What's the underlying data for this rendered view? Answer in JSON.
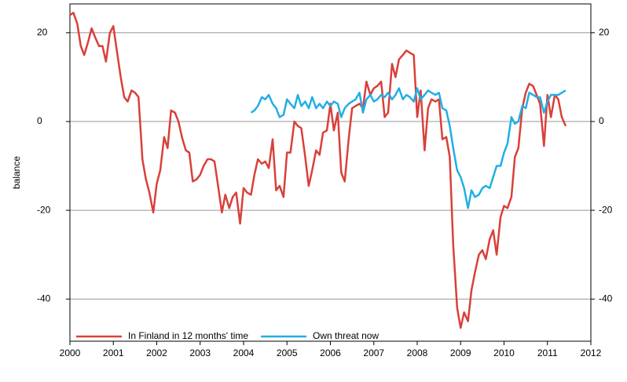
{
  "chart_data": {
    "type": "line",
    "y_label": "balance",
    "xlim": [
      2000,
      2012
    ],
    "xticks": [
      2000,
      2001,
      2002,
      2003,
      2004,
      2005,
      2006,
      2007,
      2008,
      2009,
      2010,
      2011,
      2012
    ],
    "ylim": [
      -49.5,
      26.5
    ],
    "yticks": [
      -40,
      -20,
      0,
      20
    ],
    "y2lim": [
      -49.5,
      26.5
    ],
    "y2ticks": [
      -40,
      -20,
      0,
      20
    ],
    "grid": true,
    "legend": "lower left",
    "series": [
      {
        "name": "In Finland in 12 months' time",
        "color": "#d9403a",
        "x": [
          2000.0,
          2000.08,
          2000.17,
          2000.25,
          2000.33,
          2000.42,
          2000.5,
          2000.58,
          2000.67,
          2000.75,
          2000.83,
          2000.92,
          2001.0,
          2001.08,
          2001.17,
          2001.25,
          2001.33,
          2001.42,
          2001.5,
          2001.58,
          2001.67,
          2001.75,
          2001.83,
          2001.92,
          2002.0,
          2002.08,
          2002.17,
          2002.25,
          2002.33,
          2002.42,
          2002.5,
          2002.58,
          2002.67,
          2002.75,
          2002.83,
          2002.92,
          2003.0,
          2003.08,
          2003.17,
          2003.25,
          2003.33,
          2003.42,
          2003.5,
          2003.58,
          2003.67,
          2003.75,
          2003.83,
          2003.92,
          2004.0,
          2004.08,
          2004.17,
          2004.25,
          2004.33,
          2004.42,
          2004.5,
          2004.58,
          2004.67,
          2004.75,
          2004.83,
          2004.92,
          2005.0,
          2005.08,
          2005.17,
          2005.25,
          2005.33,
          2005.42,
          2005.5,
          2005.58,
          2005.67,
          2005.75,
          2005.83,
          2005.92,
          2006.0,
          2006.08,
          2006.17,
          2006.25,
          2006.33,
          2006.42,
          2006.5,
          2006.58,
          2006.67,
          2006.75,
          2006.83,
          2006.92,
          2007.0,
          2007.08,
          2007.17,
          2007.25,
          2007.33,
          2007.42,
          2007.5,
          2007.58,
          2007.67,
          2007.75,
          2007.83,
          2007.92,
          2008.0,
          2008.08,
          2008.17,
          2008.25,
          2008.33,
          2008.42,
          2008.5,
          2008.58,
          2008.67,
          2008.75,
          2008.83,
          2008.92,
          2009.0,
          2009.08,
          2009.17,
          2009.25,
          2009.33,
          2009.42,
          2009.5,
          2009.58,
          2009.67,
          2009.75,
          2009.83,
          2009.92,
          2010.0,
          2010.08,
          2010.17,
          2010.25,
          2010.33,
          2010.42,
          2010.5,
          2010.58,
          2010.67,
          2010.75,
          2010.83,
          2010.92,
          2011.0,
          2011.08,
          2011.17,
          2011.25,
          2011.33,
          2011.42
        ],
        "values": [
          24,
          24.5,
          22,
          17,
          15,
          18,
          21,
          19,
          17,
          17,
          13.5,
          20,
          21.5,
          16,
          10,
          5.5,
          4.5,
          7,
          6.5,
          5.5,
          -8.5,
          -13,
          -16,
          -20.5,
          -14,
          -11,
          -3.5,
          -6,
          2.5,
          2,
          0,
          -3.5,
          -6.5,
          -7,
          -13.5,
          -13,
          -12,
          -10,
          -8.5,
          -8.5,
          -9,
          -15,
          -20.5,
          -16.5,
          -19.5,
          -17,
          -16,
          -23,
          -15,
          -16,
          -16.5,
          -12,
          -8.5,
          -9.5,
          -9,
          -10.5,
          -4,
          -15.5,
          -14.5,
          -17,
          -7,
          -7,
          0,
          -1,
          -1.5,
          -8,
          -14.5,
          -11,
          -6.5,
          -7.5,
          -2.5,
          -2,
          4,
          -2,
          2,
          -11.5,
          -13.5,
          -4,
          3,
          3.5,
          4,
          3,
          9,
          6,
          7.5,
          8,
          9,
          1,
          2,
          13,
          10,
          14,
          15,
          16,
          15.5,
          15,
          1,
          7,
          -6.5,
          3,
          5,
          4.5,
          5,
          -4,
          -3.5,
          -8,
          -28,
          -42,
          -46.5,
          -43,
          -45,
          -38,
          -34,
          -30,
          -29,
          -31,
          -26.5,
          -24.5,
          -30,
          -21.5,
          -19,
          -19.5,
          -17,
          -8,
          -6,
          3,
          6.5,
          8.5,
          8,
          6,
          4,
          -5.5,
          6,
          1,
          6,
          5,
          1,
          -1
        ]
      },
      {
        "name": "Own threat now",
        "color": "#22aee6",
        "x": [
          2004.17,
          2004.25,
          2004.33,
          2004.42,
          2004.5,
          2004.58,
          2004.67,
          2004.75,
          2004.83,
          2004.92,
          2005.0,
          2005.08,
          2005.17,
          2005.25,
          2005.33,
          2005.42,
          2005.5,
          2005.58,
          2005.67,
          2005.75,
          2005.83,
          2005.92,
          2006.0,
          2006.08,
          2006.17,
          2006.25,
          2006.33,
          2006.42,
          2006.5,
          2006.58,
          2006.67,
          2006.75,
          2006.83,
          2006.92,
          2007.0,
          2007.08,
          2007.17,
          2007.25,
          2007.33,
          2007.42,
          2007.5,
          2007.58,
          2007.67,
          2007.75,
          2007.83,
          2007.92,
          2008.0,
          2008.08,
          2008.17,
          2008.25,
          2008.33,
          2008.42,
          2008.5,
          2008.58,
          2008.67,
          2008.75,
          2008.83,
          2008.92,
          2009.0,
          2009.08,
          2009.17,
          2009.25,
          2009.33,
          2009.42,
          2009.5,
          2009.58,
          2009.67,
          2009.75,
          2009.83,
          2009.92,
          2010.0,
          2010.08,
          2010.17,
          2010.25,
          2010.33,
          2010.42,
          2010.5,
          2010.58,
          2010.67,
          2010.75,
          2010.83,
          2010.92,
          2011.0,
          2011.08,
          2011.17,
          2011.25,
          2011.33,
          2011.42
        ],
        "values": [
          2,
          2.5,
          3.5,
          5.5,
          5,
          6,
          4,
          3,
          1,
          1.5,
          5,
          4,
          3,
          6,
          3.5,
          4.5,
          3,
          5.5,
          3,
          4,
          3,
          4.5,
          3.5,
          4.5,
          4,
          1,
          3,
          4,
          4.5,
          5,
          6.5,
          2,
          5,
          6,
          4.5,
          5,
          6,
          5.5,
          6.5,
          5,
          6,
          7.5,
          5,
          6,
          5.5,
          4.5,
          7.5,
          5,
          6,
          7,
          6.5,
          6,
          6.5,
          3,
          2.5,
          -1,
          -6,
          -11,
          -12.5,
          -15,
          -19.5,
          -15.5,
          -17,
          -16.5,
          -15,
          -14.5,
          -15,
          -12.5,
          -10,
          -10,
          -7,
          -5,
          1,
          -0.5,
          0,
          3.5,
          3,
          6.5,
          6,
          5.5,
          5.5,
          2,
          4.5,
          6,
          6,
          6,
          6.5,
          7
        ]
      }
    ]
  }
}
